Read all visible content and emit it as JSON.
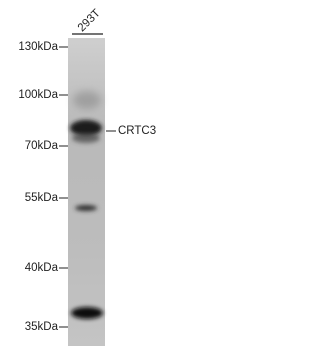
{
  "lane_labels": [
    "293T"
  ],
  "markers": [
    "130kDa",
    "100kDa",
    "70kDa",
    "55kDa",
    "40kDa",
    "35kDa"
  ],
  "band_label": "CRTC3"
}
